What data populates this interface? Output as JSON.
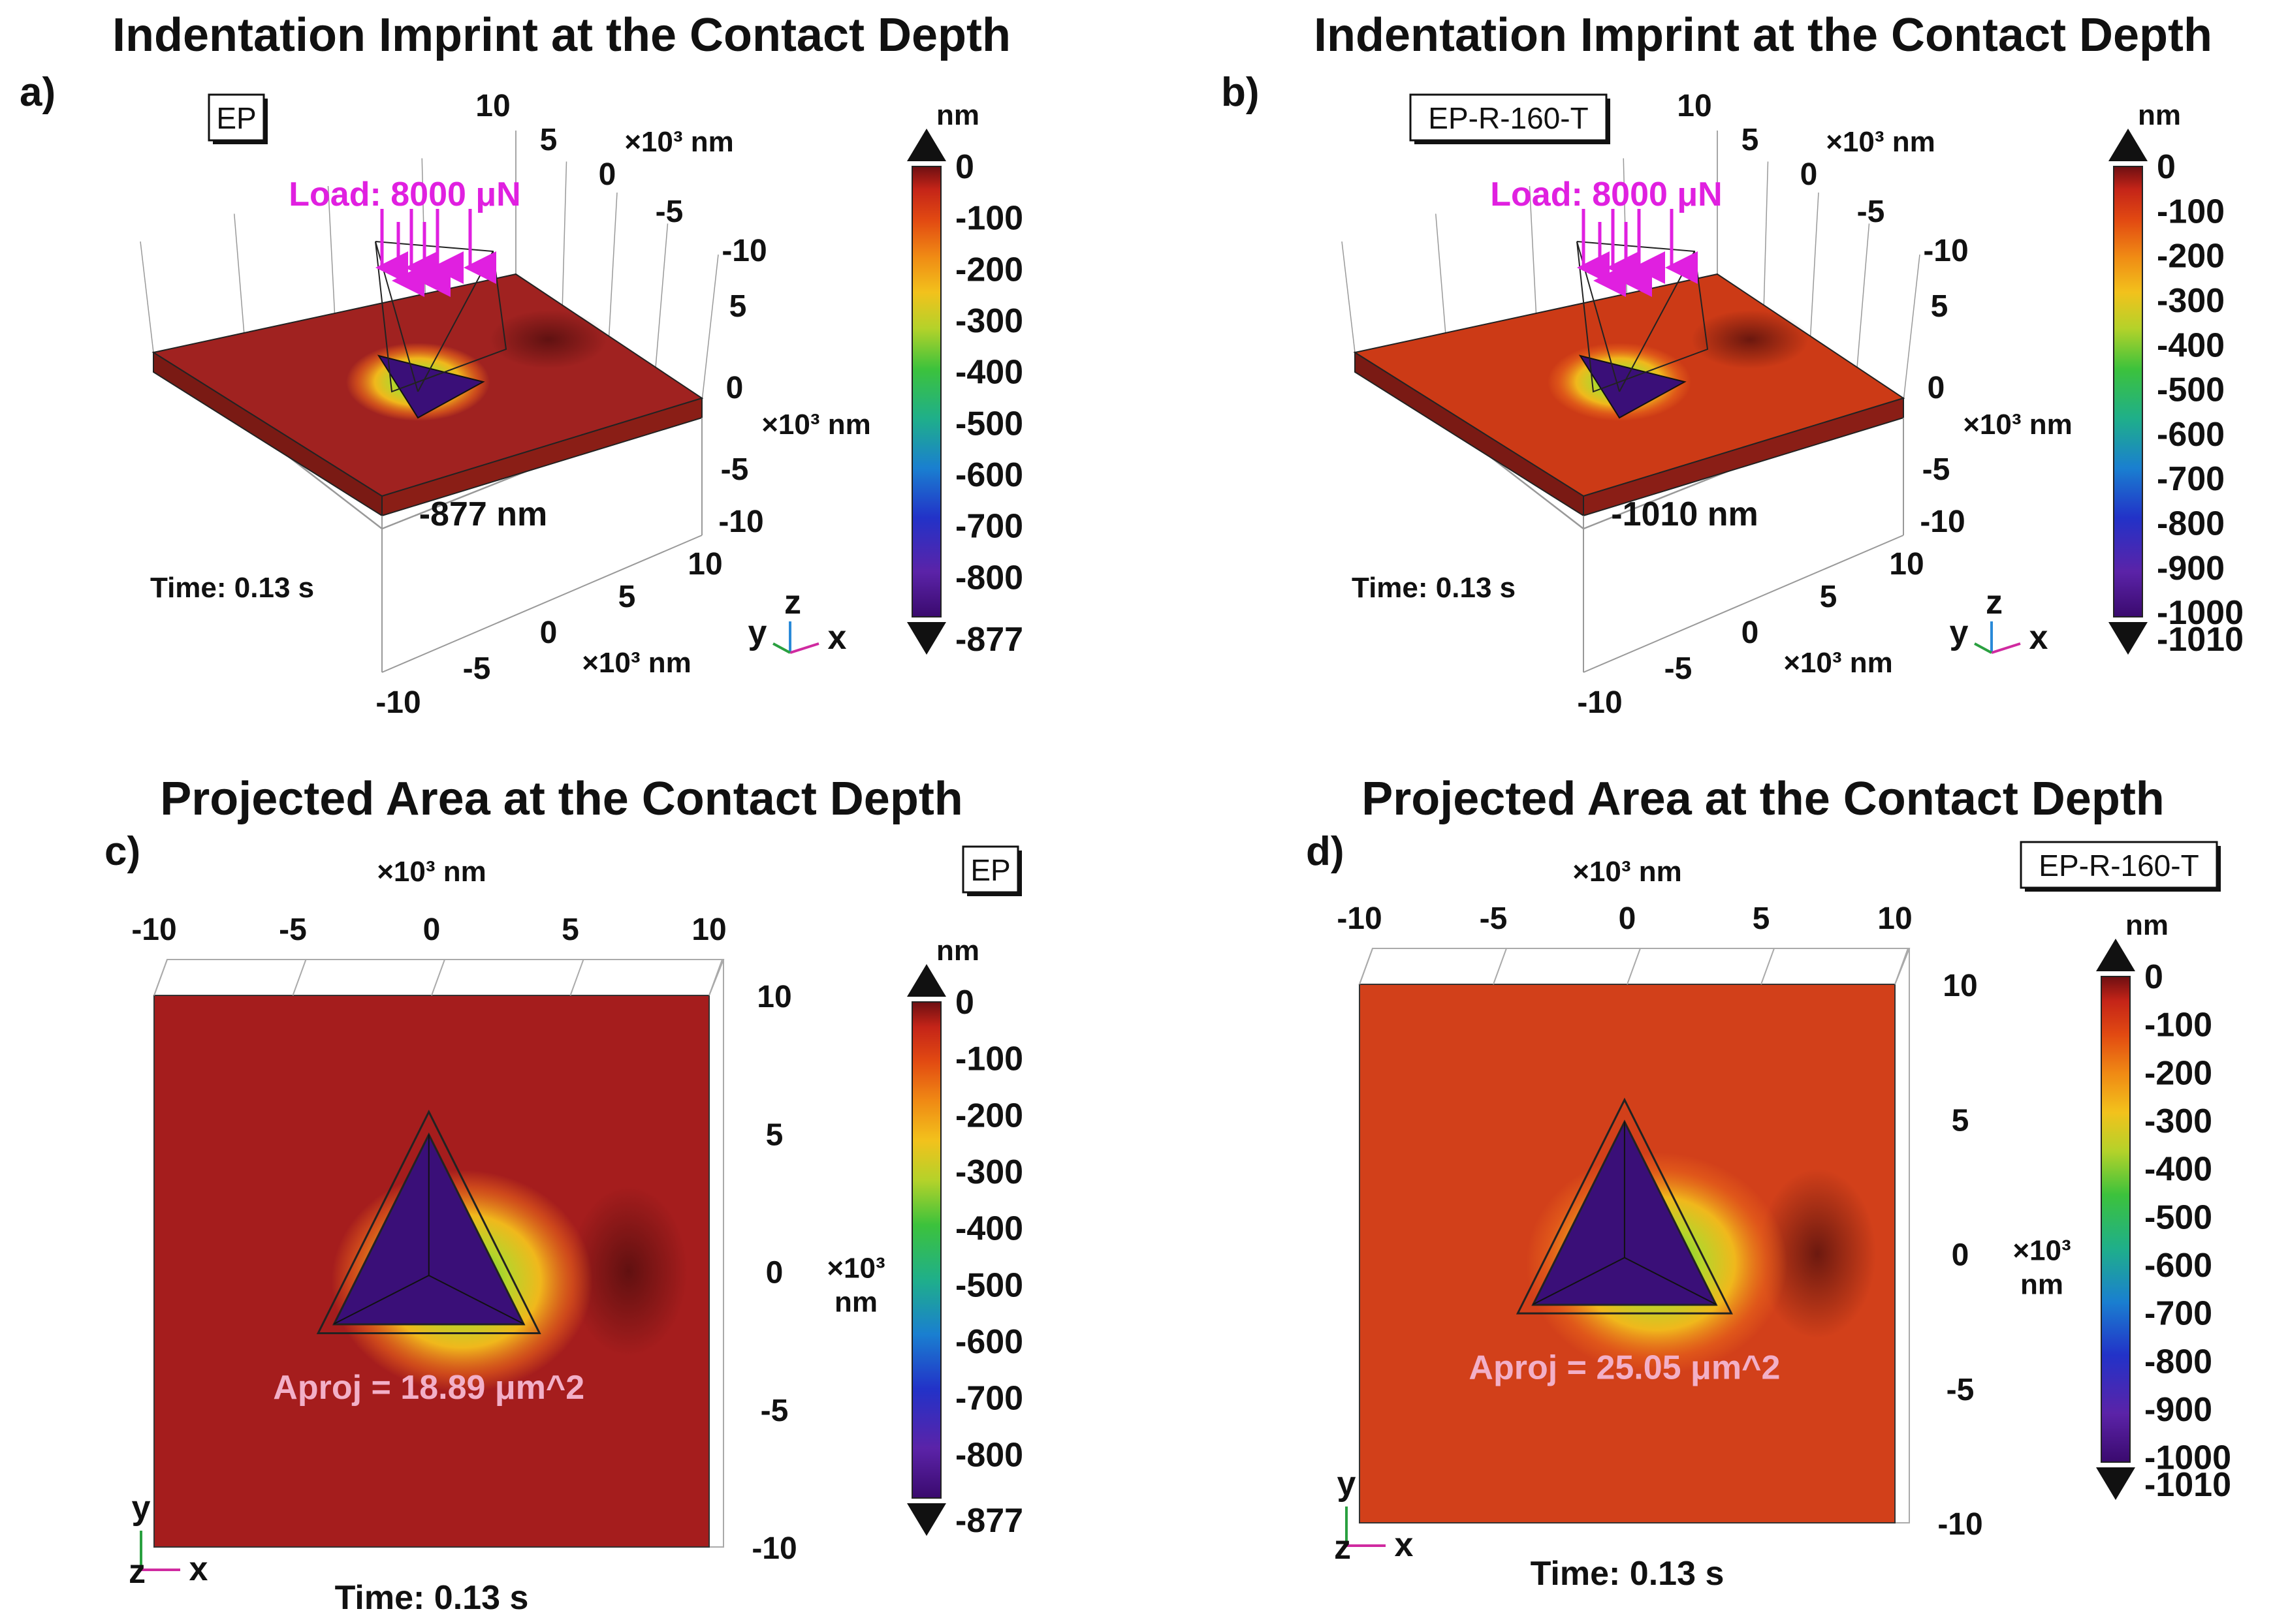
{
  "chart_data": [
    {
      "type": "surface3d",
      "panel": "a)",
      "title": "Indentation Imprint at the Contact Depth",
      "sample": "EP",
      "load_label": "Load: 8000 μN",
      "time_label": "Time: 0.13 s",
      "depth_label": "-877 nm",
      "axis_unit": "×10³ nm",
      "x_ticks": [
        "-10",
        "-5",
        "0",
        "5",
        "10"
      ],
      "y_ticks": [
        "-10",
        "-5",
        "0",
        "5",
        "10"
      ],
      "z_ticks": [
        "10",
        "5",
        "0",
        "-5",
        "-10"
      ],
      "xlim": [
        -10,
        10
      ],
      "ylim": [
        -10,
        10
      ],
      "zlim": [
        -10,
        10
      ],
      "colorbar": {
        "unit": "nm",
        "labels": [
          "0",
          "-100",
          "-200",
          "-300",
          "-400",
          "-500",
          "-600",
          "-700",
          "-800"
        ],
        "max_label": "0",
        "min_label": "-877",
        "range": [
          -877,
          0
        ]
      },
      "triad": {
        "x": "x",
        "y": "y",
        "z": "z"
      },
      "surface_color": "#a02220"
    },
    {
      "type": "surface3d",
      "panel": "b)",
      "title": "Indentation Imprint at the Contact Depth",
      "sample": "EP-R-160-T",
      "load_label": "Load: 8000 μN",
      "time_label": "Time: 0.13 s",
      "depth_label": "-1010 nm",
      "axis_unit": "×10³ nm",
      "x_ticks": [
        "-10",
        "-5",
        "0",
        "5",
        "10"
      ],
      "y_ticks": [
        "-10",
        "-5",
        "0",
        "5",
        "10"
      ],
      "z_ticks": [
        "10",
        "5",
        "0",
        "-5",
        "-10"
      ],
      "xlim": [
        -10,
        10
      ],
      "ylim": [
        -10,
        10
      ],
      "zlim": [
        -10,
        10
      ],
      "colorbar": {
        "unit": "nm",
        "labels": [
          "0",
          "-100",
          "-200",
          "-300",
          "-400",
          "-500",
          "-600",
          "-700",
          "-800",
          "-900",
          "-1000"
        ],
        "max_label": "0",
        "min_label": "-1010",
        "range": [
          -1010,
          0
        ]
      },
      "triad": {
        "x": "x",
        "y": "y",
        "z": "z"
      },
      "surface_color": "#cc3a16"
    },
    {
      "type": "heatmap",
      "panel": "c)",
      "title": "Projected Area at the Contact Depth",
      "sample": "EP",
      "area_label": "Aproj = 18.89 μm^2",
      "time_label": "Time: 0.13 s",
      "axis_unit": "×10³ nm",
      "unit_top": "×10³",
      "unit_bottom": "nm",
      "x_ticks": [
        "-10",
        "-5",
        "0",
        "5",
        "10"
      ],
      "y_ticks": [
        "10",
        "5",
        "0",
        "-5",
        "-10"
      ],
      "xlim": [
        -10,
        10
      ],
      "ylim": [
        -10,
        10
      ],
      "colorbar": {
        "unit": "nm",
        "labels": [
          "0",
          "-100",
          "-200",
          "-300",
          "-400",
          "-500",
          "-600",
          "-700",
          "-800"
        ],
        "max_label": "0",
        "min_label": "-877",
        "range": [
          -877,
          0
        ]
      },
      "triad": {
        "x": "x",
        "y": "y",
        "z": "z"
      },
      "surface_color": "#a51d1d"
    },
    {
      "type": "heatmap",
      "panel": "d)",
      "title": "Projected Area at the Contact Depth",
      "sample": "EP-R-160-T",
      "area_label": "Aproj = 25.05 μm^2",
      "time_label": "Time: 0.13 s",
      "axis_unit": "×10³ nm",
      "unit_top": "×10³",
      "unit_bottom": "nm",
      "x_ticks": [
        "-10",
        "-5",
        "0",
        "5",
        "10"
      ],
      "y_ticks": [
        "10",
        "5",
        "0",
        "-5",
        "-10"
      ],
      "xlim": [
        -10,
        10
      ],
      "ylim": [
        -10,
        10
      ],
      "colorbar": {
        "unit": "nm",
        "labels": [
          "0",
          "-100",
          "-200",
          "-300",
          "-400",
          "-500",
          "-600",
          "-700",
          "-800",
          "-900",
          "-1000"
        ],
        "max_label": "0",
        "min_label": "-1010",
        "range": [
          -1010,
          0
        ]
      },
      "triad": {
        "x": "x",
        "y": "y",
        "z": "z"
      },
      "surface_color": "#d2401a"
    }
  ]
}
